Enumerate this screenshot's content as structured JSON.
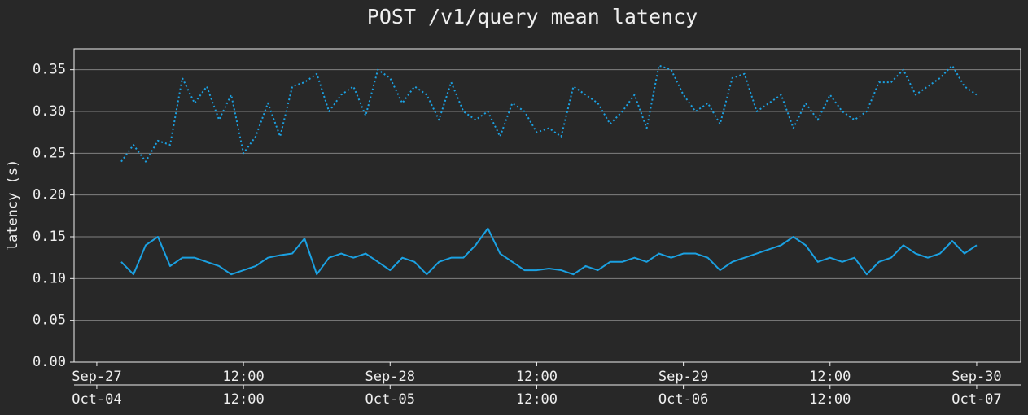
{
  "chart_data": {
    "type": "line",
    "title": "POST /v1/query mean latency",
    "y_label": "latency (s)",
    "x": [
      2,
      3,
      4,
      5,
      6,
      7,
      8,
      9,
      10,
      11,
      12,
      13,
      14,
      15,
      16,
      17,
      18,
      19,
      20,
      21,
      22,
      23,
      24,
      25,
      26,
      27,
      28,
      29,
      30,
      31,
      32,
      33,
      34,
      35,
      36,
      37,
      38,
      39,
      40,
      41,
      42,
      43,
      44,
      45,
      46,
      47,
      48,
      49,
      50,
      51,
      52,
      53,
      54,
      55,
      56,
      57,
      58,
      59,
      60,
      61,
      62,
      63,
      64,
      65,
      66,
      67,
      68,
      69,
      70,
      71,
      72
    ],
    "series": [
      {
        "color": "#1ba1e2",
        "dash": "solid",
        "values": [
          0.12,
          0.105,
          0.14,
          0.15,
          0.115,
          0.125,
          0.125,
          0.12,
          0.115,
          0.105,
          0.11,
          0.115,
          0.125,
          0.128,
          0.13,
          0.148,
          0.105,
          0.125,
          0.13,
          0.125,
          0.13,
          0.12,
          0.11,
          0.125,
          0.12,
          0.105,
          0.12,
          0.125,
          0.125,
          0.14,
          0.16,
          0.13,
          0.12,
          0.11,
          0.11,
          0.112,
          0.11,
          0.105,
          0.115,
          0.11,
          0.12,
          0.12,
          0.125,
          0.12,
          0.13,
          0.125,
          0.13,
          0.13,
          0.125,
          0.11,
          0.12,
          0.125,
          0.13,
          0.135,
          0.14,
          0.15,
          0.14,
          0.12,
          0.125,
          0.12,
          0.125,
          0.105,
          0.12,
          0.125,
          0.14,
          0.13,
          0.125,
          0.13,
          0.145,
          0.13,
          0.14
        ]
      },
      {
        "color": "#1ba1e2",
        "dash": "dotted",
        "values": [
          0.24,
          0.26,
          0.24,
          0.265,
          0.26,
          0.34,
          0.31,
          0.33,
          0.29,
          0.32,
          0.25,
          0.27,
          0.31,
          0.27,
          0.33,
          0.335,
          0.345,
          0.3,
          0.32,
          0.33,
          0.295,
          0.35,
          0.34,
          0.31,
          0.33,
          0.32,
          0.29,
          0.335,
          0.3,
          0.29,
          0.3,
          0.27,
          0.31,
          0.3,
          0.275,
          0.28,
          0.27,
          0.33,
          0.32,
          0.31,
          0.285,
          0.3,
          0.32,
          0.28,
          0.355,
          0.35,
          0.32,
          0.3,
          0.31,
          0.285,
          0.34,
          0.345,
          0.3,
          0.31,
          0.32,
          0.28,
          0.31,
          0.29,
          0.32,
          0.3,
          0.29,
          0.3,
          0.335,
          0.335,
          0.35,
          0.32,
          0.33,
          0.34,
          0.355,
          0.33,
          0.32
        ]
      }
    ],
    "xlim": [
      -1.86,
      75.6
    ],
    "xticks": [
      {
        "value": 0,
        "label": "Sep-27"
      },
      {
        "value": 12,
        "label": "12:00"
      },
      {
        "value": 24,
        "label": "Sep-28"
      },
      {
        "value": 36,
        "label": "12:00"
      },
      {
        "value": 48,
        "label": "Sep-29"
      },
      {
        "value": 60,
        "label": "12:00"
      },
      {
        "value": 72,
        "label": "Sep-30"
      }
    ],
    "x2ticks": [
      {
        "value": 0,
        "label": "Oct-04"
      },
      {
        "value": 12,
        "label": "12:00"
      },
      {
        "value": 24,
        "label": "Oct-05"
      },
      {
        "value": 36,
        "label": "12:00"
      },
      {
        "value": 48,
        "label": "Oct-06"
      },
      {
        "value": 60,
        "label": "12:00"
      },
      {
        "value": 72,
        "label": "Oct-07"
      }
    ],
    "ylim": [
      0,
      0.375
    ],
    "yticks": [
      {
        "value": 0,
        "label": "0.00"
      },
      {
        "value": 0.05,
        "label": "0.05"
      },
      {
        "value": 0.1,
        "label": "0.10"
      },
      {
        "value": 0.15,
        "label": "0.15"
      },
      {
        "value": 0.2,
        "label": "0.20"
      },
      {
        "value": 0.25,
        "label": "0.25"
      },
      {
        "value": 0.3,
        "label": "0.30"
      },
      {
        "value": 0.35,
        "label": "0.35"
      }
    ],
    "grid": true
  }
}
